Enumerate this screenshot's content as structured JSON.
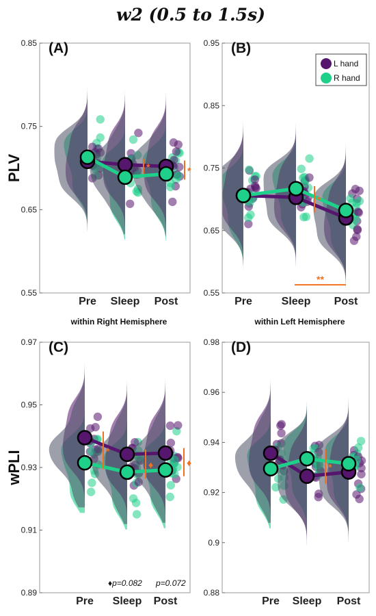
{
  "title": "w2 (0.5 to 1.5s)",
  "colors": {
    "L": "#57166e",
    "R": "#1fd08a",
    "sig": "#f07020"
  },
  "legend": [
    {
      "key": "L",
      "label": "L hand"
    },
    {
      "key": "R",
      "label": "R hand"
    }
  ],
  "chart_data": [
    {
      "type": "line",
      "panel": "(A)",
      "ylabel": "PLV",
      "categories": [
        "Pre",
        "Sleep",
        "Post"
      ],
      "ylim": [
        0.55,
        0.85
      ],
      "yticks": [
        "0.55",
        "0.65",
        "0.75",
        "0.85"
      ],
      "series": [
        {
          "name": "L hand",
          "key": "L",
          "values": [
            0.708,
            0.704,
            0.702
          ]
        },
        {
          "name": "R hand",
          "key": "R",
          "values": [
            0.713,
            0.689,
            0.693
          ]
        }
      ],
      "annotations": [
        {
          "between": [
            1,
            1
          ],
          "range": [
            0.693,
            0.711
          ],
          "label": "*"
        },
        {
          "between": [
            2,
            2
          ],
          "range": [
            0.686,
            0.709
          ],
          "label": "*"
        }
      ]
    },
    {
      "type": "line",
      "panel": "(B)",
      "ylabel": "",
      "categories": [
        "Pre",
        "Sleep",
        "Post"
      ],
      "ylim": [
        0.55,
        0.95
      ],
      "yticks": [
        "0.55",
        "0.65",
        "0.75",
        "0.85",
        "0.95"
      ],
      "series": [
        {
          "name": "L hand",
          "key": "L",
          "values": [
            0.706,
            0.703,
            0.67
          ]
        },
        {
          "name": "R hand",
          "key": "R",
          "values": [
            0.706,
            0.717,
            0.682
          ]
        }
      ],
      "annotations": [
        {
          "between": [
            1,
            1
          ],
          "range": [
            0.679,
            0.721
          ],
          "label": "*"
        },
        {
          "bracket": [
            1,
            2
          ],
          "y": 0.563,
          "label": "**"
        }
      ]
    },
    {
      "type": "line",
      "panel": "(C)",
      "ylabel": "wPLI",
      "hemisphere": "within Right Hemisphere",
      "categories": [
        "Pre",
        "Sleep",
        "Post"
      ],
      "ylim": [
        0.89,
        0.97
      ],
      "yticks": [
        "0.89",
        "0.91",
        "0.93",
        "0.95",
        "0.97"
      ],
      "series": [
        {
          "name": "L hand",
          "key": "L",
          "values": [
            0.9395,
            0.9342,
            0.9346
          ]
        },
        {
          "name": "R hand",
          "key": "R",
          "values": [
            0.9315,
            0.9285,
            0.9292
          ]
        }
      ],
      "annotations": [
        {
          "between": [
            0,
            0
          ],
          "range": [
            0.9295,
            0.9415
          ],
          "label": "*"
        },
        {
          "between": [
            1,
            1
          ],
          "range": [
            0.9265,
            0.9357
          ],
          "label": "♦"
        },
        {
          "between": [
            2,
            2
          ],
          "range": [
            0.9272,
            0.9362
          ],
          "label": "♦"
        }
      ],
      "notes": [
        "♦p=0.082",
        "p=0.072"
      ]
    },
    {
      "type": "line",
      "panel": "(D)",
      "ylabel": "",
      "hemisphere": "within Left Hemisphere",
      "categories": [
        "Pre",
        "Sleep",
        "Post"
      ],
      "ylim": [
        0.88,
        0.98
      ],
      "yticks": [
        "0.88",
        "0.9",
        "0.92",
        "0.94",
        "0.96",
        "0.98"
      ],
      "series": [
        {
          "name": "L hand",
          "key": "L",
          "values": [
            0.9357,
            0.9265,
            0.9282
          ]
        },
        {
          "name": "R hand",
          "key": "R",
          "values": [
            0.9295,
            0.9335,
            0.9315
          ]
        }
      ],
      "annotations": [
        {
          "between": [
            1,
            1
          ],
          "range": [
            0.9235,
            0.9372
          ],
          "label": "*"
        }
      ]
    }
  ]
}
